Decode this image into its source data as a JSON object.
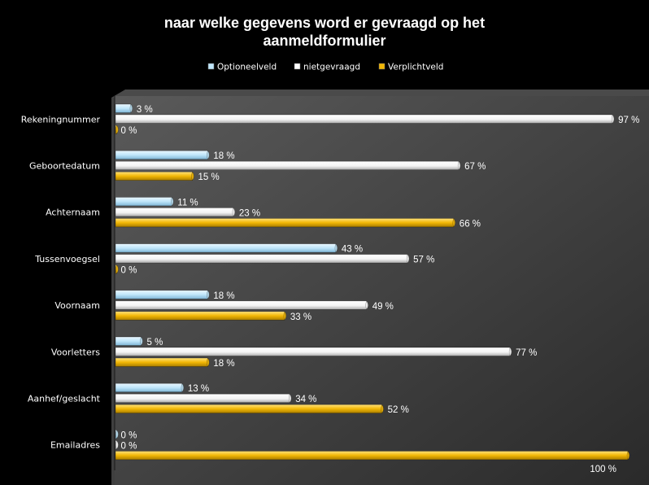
{
  "chart_data": {
    "type": "bar",
    "orientation": "horizontal",
    "title_lines": [
      "naar welke gegevens word er gevraagd op het",
      "aanmeldformulier"
    ],
    "categories": [
      "Rekeningnummer",
      "Geboortedatum",
      "Achternaam",
      "Tussenvoegsel",
      "Voornaam",
      "Voorletters",
      "Aanhef/geslacht",
      "Emailadres"
    ],
    "series": [
      {
        "name": "Optioneelveld",
        "values": [
          3,
          18,
          11,
          43,
          18,
          5,
          13,
          0
        ],
        "color": "#bfe6fa"
      },
      {
        "name": "nietgevraagd",
        "values": [
          97,
          67,
          23,
          57,
          49,
          77,
          34,
          0
        ],
        "color": "#ffffff"
      },
      {
        "name": "Verplichtveld",
        "values": [
          0,
          15,
          66,
          0,
          33,
          18,
          52,
          100
        ],
        "color": "#f2b705"
      }
    ],
    "value_suffix": " %",
    "xlim": [
      0,
      100
    ],
    "grid": false,
    "legend_position": "top"
  }
}
